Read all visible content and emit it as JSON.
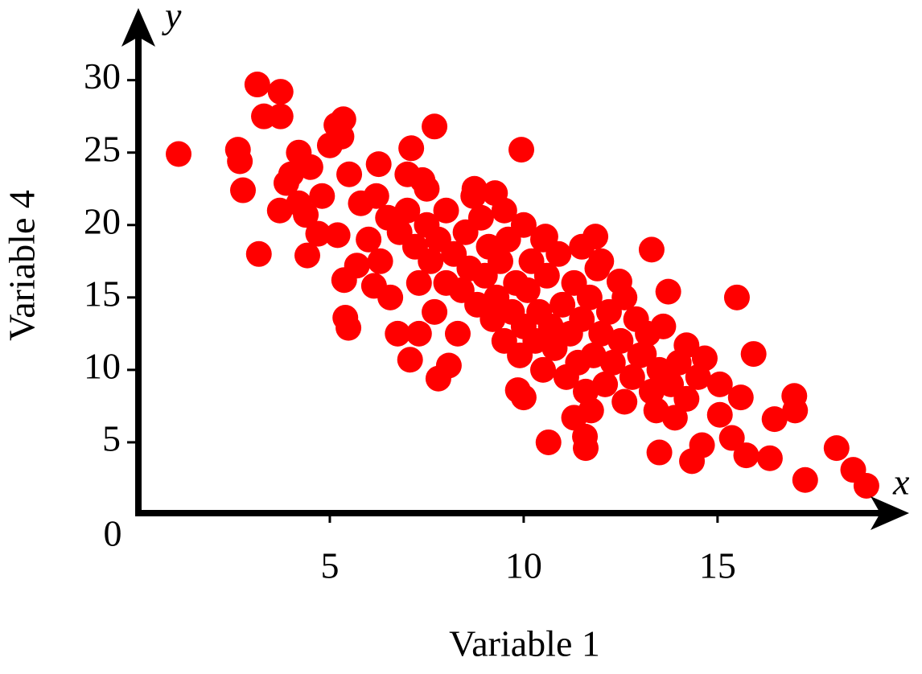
{
  "chart_data": {
    "type": "scatter",
    "x_label": "Variable 1",
    "y_label": "Variable 4",
    "x_axis_letter": "x",
    "y_axis_letter": "y",
    "origin_label": "0",
    "color": "#ff0000",
    "xlim": [
      0,
      19.9
    ],
    "ylim": [
      0,
      34.7
    ],
    "xticks": [
      5,
      10,
      15
    ],
    "yticks": [
      5,
      10,
      15,
      20,
      25,
      30
    ],
    "x": [
      1.1,
      2.63,
      2.68,
      2.76,
      3.13,
      3.73,
      3.3,
      3.73,
      3.17,
      4.42,
      3.71,
      3.88,
      5.35,
      5.17,
      5.3,
      4.2,
      5.4,
      5.48,
      5.37,
      7.7,
      9.94,
      7.1,
      6.75,
      7.3,
      7.07,
      7.8,
      8.07,
      10.64,
      11.6,
      11.58,
      13.3,
      13.73,
      15.5,
      15.93,
      14.67,
      13.5,
      14.34,
      14.6,
      15.37,
      15.74,
      16.35,
      16.47,
      17.0,
      16.98,
      17.26,
      18.07,
      18.5,
      18.84,
      15.06,
      15.6,
      15.06,
      13.42,
      13.9,
      11.74,
      11.3,
      10.0,
      9.85,
      11.85,
      10.56,
      10.0,
      8.73,
      9.26,
      5.7,
      6.14,
      6.56,
      6.26,
      7.39,
      4.38,
      4.7,
      5.2,
      12.47,
      12.6,
      13.1,
      14.2,
      5.8,
      6.2,
      6.5,
      6.8,
      7.0,
      7.2,
      7.5,
      7.6,
      7.8,
      8.0,
      8.0,
      8.2,
      8.4,
      8.5,
      8.6,
      8.8,
      8.9,
      9.0,
      9.1,
      9.2,
      9.3,
      9.4,
      9.5,
      9.6,
      9.7,
      9.8,
      9.9,
      10.0,
      10.1,
      10.2,
      10.3,
      10.4,
      10.5,
      10.6,
      10.7,
      10.8,
      10.9,
      11.0,
      11.1,
      11.2,
      11.3,
      11.4,
      11.5,
      11.6,
      11.7,
      11.8,
      11.9,
      12.0,
      12.1,
      12.2,
      12.3,
      12.5,
      12.6,
      12.8,
      12.9,
      13.0,
      13.2,
      13.3,
      13.5,
      13.6,
      13.8,
      14.0,
      14.2,
      14.5,
      7.0,
      7.5,
      4.5,
      4.8,
      5.0,
      5.5,
      6.0,
      6.3,
      7.3,
      7.7,
      8.3,
      8.7,
      9.5,
      10.5,
      11.5,
      12.0,
      4.2,
      4.0
    ],
    "y": [
      24.9,
      25.2,
      24.4,
      22.4,
      29.7,
      29.2,
      27.5,
      27.5,
      18.0,
      17.9,
      21.0,
      22.9,
      27.3,
      26.9,
      26.1,
      25.0,
      13.6,
      12.9,
      16.2,
      26.8,
      25.2,
      25.3,
      12.5,
      12.5,
      10.7,
      9.4,
      10.3,
      5.0,
      4.6,
      5.4,
      18.3,
      15.4,
      15.0,
      11.1,
      10.8,
      4.3,
      3.7,
      4.8,
      5.3,
      4.1,
      3.9,
      6.6,
      7.2,
      8.2,
      2.4,
      4.6,
      3.1,
      2.0,
      9.0,
      8.1,
      6.9,
      7.2,
      6.7,
      7.2,
      6.7,
      8.1,
      8.6,
      19.2,
      19.2,
      20.0,
      22.5,
      22.2,
      17.2,
      15.8,
      15.0,
      24.2,
      23.1,
      20.7,
      19.4,
      19.3,
      16.1,
      7.8,
      11.1,
      11.7,
      21.5,
      22.0,
      20.5,
      19.5,
      21.0,
      18.5,
      20.0,
      17.5,
      19.0,
      21.0,
      16.0,
      18.0,
      15.5,
      19.5,
      17.0,
      14.5,
      20.5,
      16.5,
      18.5,
      13.5,
      15.0,
      17.5,
      12.0,
      19.0,
      14.0,
      16.0,
      11.0,
      13.0,
      15.5,
      17.5,
      12.0,
      14.0,
      10.0,
      16.5,
      13.0,
      11.5,
      18.0,
      14.5,
      9.5,
      12.5,
      16.0,
      10.5,
      13.5,
      8.5,
      15.0,
      11.0,
      17.0,
      12.5,
      9.0,
      14.0,
      10.5,
      12.0,
      15.0,
      9.5,
      13.5,
      11.0,
      12.5,
      8.5,
      10.0,
      13.0,
      9.0,
      10.5,
      8.0,
      9.5,
      23.5,
      22.5,
      24.0,
      22.0,
      25.5,
      23.5,
      19.0,
      17.5,
      16.0,
      14.0,
      12.5,
      22.0,
      21.0,
      19.0,
      18.5,
      17.5,
      21.5,
      23.5
    ]
  }
}
